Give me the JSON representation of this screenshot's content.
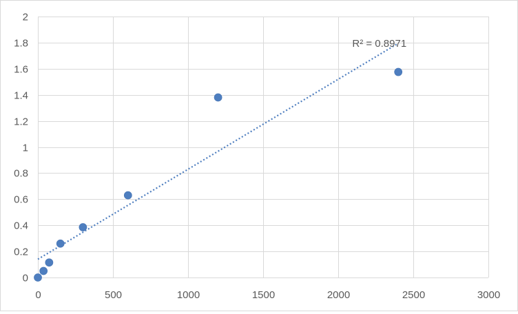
{
  "chart_data": {
    "type": "scatter",
    "title": "",
    "xlabel": "",
    "ylabel": "",
    "xlim": [
      0,
      3000
    ],
    "ylim": [
      0,
      2
    ],
    "x_ticks": [
      0,
      500,
      1000,
      1500,
      2000,
      2500,
      3000
    ],
    "y_ticks": [
      0,
      0.2,
      0.4,
      0.6,
      0.8,
      1,
      1.2,
      1.4,
      1.6,
      1.8,
      2
    ],
    "x_tick_labels": [
      "0",
      "500",
      "1000",
      "1500",
      "2000",
      "2500",
      "3000"
    ],
    "y_tick_labels": [
      "0",
      "0.2",
      "0.4",
      "0.6",
      "0.8",
      "1",
      "1.2",
      "1.4",
      "1.6",
      "1.8",
      "2"
    ],
    "grid": true,
    "legend": "none",
    "series": [
      {
        "x": [
          0,
          37.5,
          75,
          150,
          300,
          600,
          1200,
          2400
        ],
        "y": [
          0.0,
          0.05,
          0.115,
          0.26,
          0.385,
          0.63,
          1.38,
          1.575
        ],
        "color": "#4e7ebf"
      }
    ],
    "trendline": {
      "type": "linear",
      "x_start": 0,
      "x_end": 2400,
      "y_start": 0.14,
      "y_end": 1.795,
      "color": "#4e7ebf",
      "label": "R² = 0.8971"
    }
  }
}
